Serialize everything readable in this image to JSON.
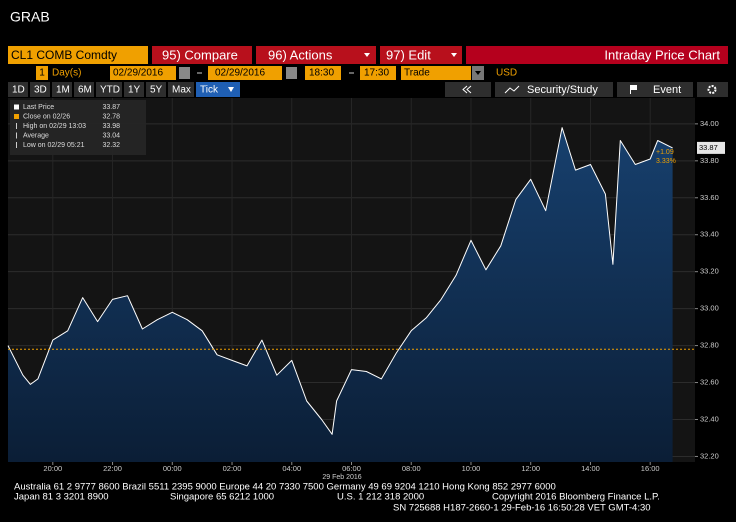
{
  "header": {
    "title": "GRAB"
  },
  "toolbar": {
    "ticker": "CL1 COMB Comdty",
    "buttons": [
      "95) Compare",
      "96) Actions",
      "97) Edit"
    ],
    "chart_name": "Intraday Price Chart"
  },
  "settings": {
    "period": "1",
    "period_unit": "Day(s)",
    "start_date": "02/29/2016",
    "end_date": "02/29/2016",
    "start_time": "18:30",
    "end_time": "17:30",
    "price_type": "Trade",
    "currency": "USD"
  },
  "ranges": [
    "1D",
    "3D",
    "1M",
    "6M",
    "YTD",
    "1Y",
    "5Y",
    "Max",
    "Tick"
  ],
  "tools": [
    "Security/Study",
    "Event"
  ],
  "chart_data": {
    "type": "line",
    "x_label": "29 Feb 2016",
    "x": [
      "18:30",
      "19:00",
      "19:15",
      "19:30",
      "20:00",
      "20:30",
      "21:00",
      "21:30",
      "22:00",
      "22:30",
      "23:00",
      "23:30",
      "00:00",
      "00:30",
      "01:00",
      "01:30",
      "02:00",
      "02:30",
      "03:00",
      "03:30",
      "04:00",
      "04:30",
      "05:00",
      "05:21",
      "05:30",
      "06:00",
      "06:30",
      "07:00",
      "07:30",
      "08:00",
      "08:30",
      "09:00",
      "09:30",
      "10:00",
      "10:30",
      "11:00",
      "11:30",
      "12:00",
      "12:30",
      "13:03",
      "13:30",
      "14:00",
      "14:30",
      "14:45",
      "15:00",
      "15:30",
      "16:00",
      "16:15",
      "16:45"
    ],
    "series": [
      {
        "name": "Last Price",
        "color": "#ffffff",
        "values": [
          32.8,
          32.64,
          32.59,
          32.62,
          32.83,
          32.88,
          33.06,
          32.93,
          33.05,
          33.07,
          32.89,
          32.94,
          32.98,
          32.94,
          32.88,
          32.75,
          32.72,
          32.69,
          32.83,
          32.64,
          32.72,
          32.5,
          32.4,
          32.32,
          32.5,
          32.67,
          32.66,
          32.62,
          32.76,
          32.88,
          32.95,
          33.05,
          33.18,
          33.37,
          33.21,
          33.34,
          33.59,
          33.7,
          33.53,
          33.98,
          33.75,
          33.78,
          33.62,
          33.24,
          33.91,
          33.78,
          33.81,
          33.91,
          33.87
        ]
      }
    ],
    "legend": [
      {
        "label": "Last Price",
        "value": 33.87,
        "color": "#ffffff"
      },
      {
        "label": "Close on 02/26",
        "value": 32.78,
        "color": "#f0a000"
      },
      {
        "label": "High on 02/29 13:03",
        "value": 33.98,
        "color": "#cccccc"
      },
      {
        "label": "Average",
        "value": 33.04,
        "color": "#cccccc"
      },
      {
        "label": "Low on 02/29 05:21",
        "value": 32.32,
        "color": "#cccccc"
      }
    ],
    "change": "+1.09",
    "change_pct": "3.33%",
    "xlim": [
      "18:30",
      "17:30"
    ],
    "xticks": [
      "20:00",
      "22:00",
      "00:00",
      "02:00",
      "04:00",
      "06:00",
      "08:00",
      "10:00",
      "12:00",
      "14:00",
      "16:00"
    ],
    "ylim": [
      32.17,
      34.14
    ],
    "yticks": [
      {
        "value": 32.2,
        "label": "32.20"
      },
      {
        "value": 32.4,
        "label": "32.40"
      },
      {
        "value": 32.6,
        "label": "32.60"
      },
      {
        "value": 32.8,
        "label": "32.80"
      },
      {
        "value": 33,
        "label": "33.00"
      },
      {
        "value": 33.2,
        "label": "33.20"
      },
      {
        "value": 33.4,
        "label": "33.40"
      },
      {
        "value": 33.6,
        "label": "33.60"
      },
      {
        "value": 33.8,
        "label": "33.80"
      },
      {
        "value": 34,
        "label": "34.00"
      }
    ],
    "grid": true
  },
  "footer": [
    "Australia 61 2 9777 8600 Brazil 5511 2395 9000 Europe 44 20 7330 7500 Germany 49 69 9204 1210 Hong Kong 852 2977 6000",
    "Japan 81 3 3201 8900",
    "Singapore 65 6212 1000",
    "U.S. 1 212 318 2000",
    "Copyright 2016 Bloomberg Finance L.P.",
    "SN 725688 H187-2660-1 29-Feb-16 16:50:28 VET  GMT-4:30"
  ]
}
